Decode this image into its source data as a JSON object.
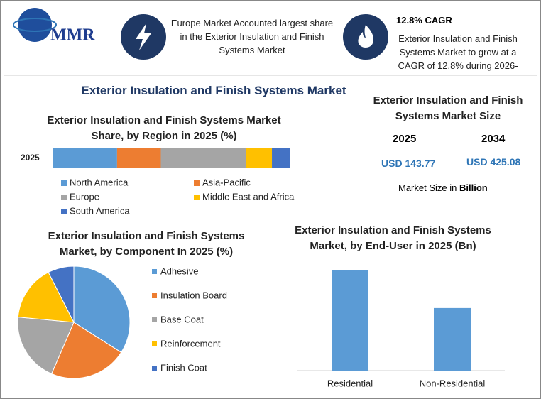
{
  "header": {
    "logo": "MMR",
    "info_1": "Europe Market Accounted largest share in the Exterior Insulation and Finish Systems Market",
    "info_2_title": "12.8% CAGR",
    "info_2": "Exterior Insulation and Finish Systems Market to grow at a CAGR of 12.8% during 2026-"
  },
  "title": "Exterior Insulation and Finish Systems Market",
  "market_size": {
    "title": "Exterior Insulation and Finish Systems Market Size",
    "years": [
      "2025",
      "2034"
    ],
    "values": [
      "USD 143.77",
      "USD 425.08"
    ],
    "note": "Market Size in",
    "unit": "Billion"
  },
  "chart_data": [
    {
      "type": "stacked_bar",
      "title": "Exterior Insulation and Finish Systems Market Share, by Region in 2025 (%)",
      "categories": [
        "2025"
      ],
      "series": [
        {
          "name": "North America",
          "color": "#5b9bd5",
          "values": [
            27
          ]
        },
        {
          "name": "Asia-Pacific",
          "color": "#ed7d31",
          "values": [
            18.5
          ]
        },
        {
          "name": "Europe",
          "color": "#a5a5a5",
          "values": [
            36
          ]
        },
        {
          "name": "Middle East and Africa",
          "color": "#ffc000",
          "values": [
            11
          ]
        },
        {
          "name": "South America",
          "color": "#4472c4",
          "values": [
            7.5
          ]
        }
      ]
    },
    {
      "type": "pie",
      "title": "Exterior Insulation and Finish Systems Market, by Component In 2025 (%)",
      "categories": [
        "Adhesive",
        "Insulation Board",
        "Base Coat",
        "Reinforcement",
        "Finish Coat"
      ],
      "values": [
        34,
        22.5,
        20,
        16,
        7.5
      ],
      "colors": [
        "#5b9bd5",
        "#ed7d31",
        "#a5a5a5",
        "#ffc000",
        "#4472c4"
      ]
    },
    {
      "type": "bar",
      "title": "Exterior Insulation and Finish Systems Market, by End-User in 2025 (Bn)",
      "categories": [
        "Residential",
        "Non-Residential"
      ],
      "values": [
        88.5,
        55.3
      ],
      "color": "#5b9bd5"
    }
  ]
}
